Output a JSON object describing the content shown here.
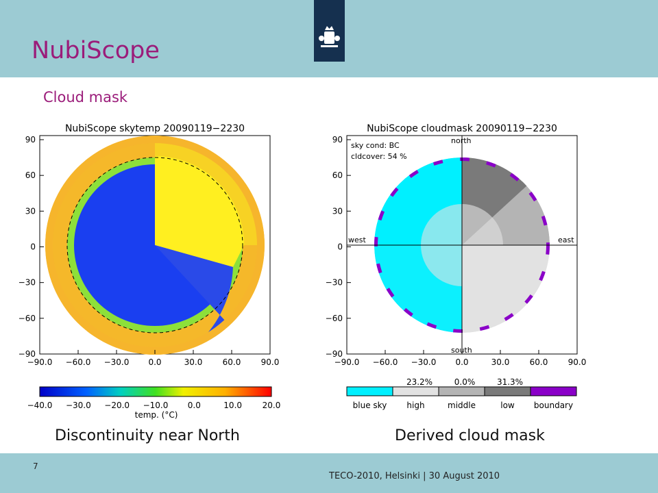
{
  "header": {
    "title": "NubiScope",
    "subtitle": "Cloud mask",
    "logo_icon": "crest-icon"
  },
  "footer": {
    "page_number": "7",
    "event": "TECO-2010, Helsinki | 30 August 2010"
  },
  "captions": {
    "left": "Discontinuity near North",
    "right": "Derived cloud mask"
  },
  "left_plot": {
    "title": "NubiScope skytemp 20090119−2230",
    "x_ticks": [
      "−90.0",
      "−60.0",
      "−30.0",
      "0.0",
      "30.0",
      "60.0",
      "90.0"
    ],
    "y_ticks": [
      "90",
      "60",
      "30",
      "0",
      "−30",
      "−60",
      "−90"
    ],
    "colorbar_ticks": [
      "−40.0",
      "−30.0",
      "−20.0",
      "−10.0",
      "0.0",
      "10.0",
      "20.0"
    ],
    "colorbar_label": "temp. (°C)"
  },
  "right_plot": {
    "title": "NubiScope cloudmask 20090119−2230",
    "x_ticks": [
      "−90.0",
      "−60.0",
      "−30.0",
      "0.0",
      "30.0",
      "60.0",
      "90.0"
    ],
    "y_ticks": [
      "90",
      "60",
      "30",
      "0",
      "−30",
      "−60",
      "−90"
    ],
    "sky_cond": "sky cond: BC",
    "cldcover": "cldcover:  54 %",
    "north": "north",
    "south": "south",
    "west": "west",
    "east": "east",
    "percentages": [
      "23.2%",
      "0.0%",
      "31.3%"
    ],
    "legend": [
      {
        "label": "blue sky",
        "color": "#00f0ff"
      },
      {
        "label": "high",
        "color": "#e2e2e2"
      },
      {
        "label": "middle",
        "color": "#b4b4b4"
      },
      {
        "label": "low",
        "color": "#7a7a7a"
      },
      {
        "label": "boundary",
        "color": "#8a00c8"
      }
    ]
  }
}
